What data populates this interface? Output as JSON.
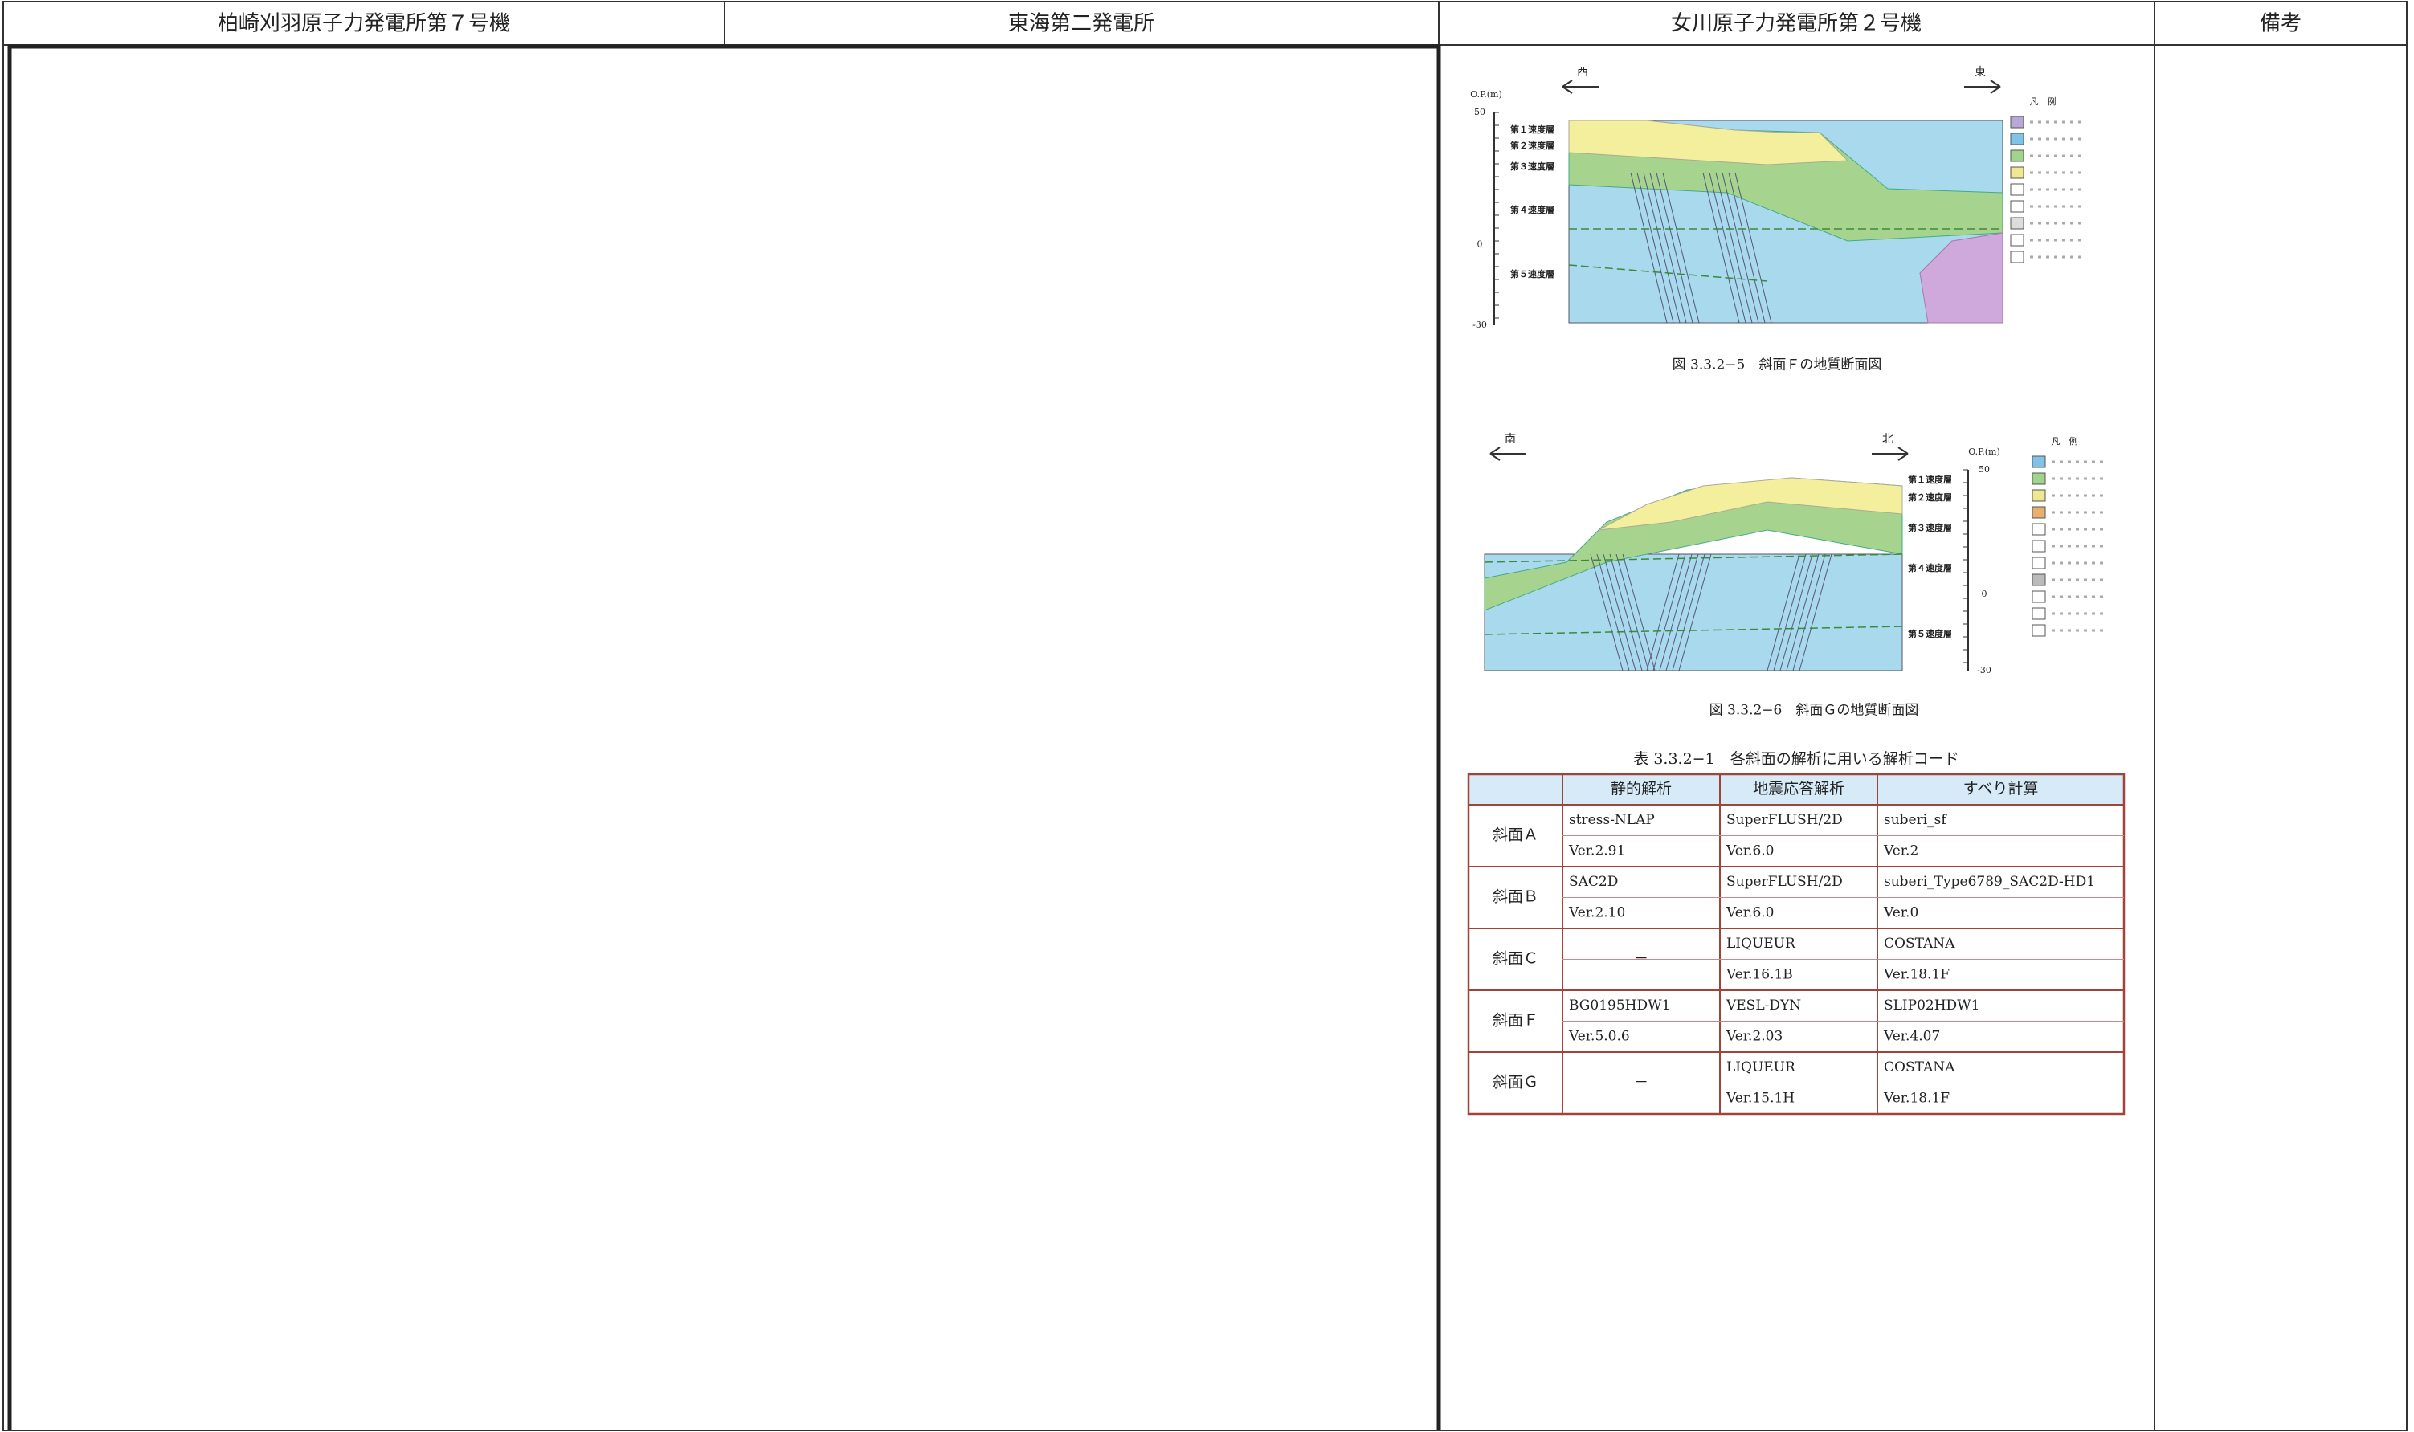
{
  "header": {
    "columns": [
      "柏崎刈羽原子力発電所第７号機",
      "東海第二発電所",
      "女川原子力発電所第２号機",
      "備考"
    ]
  },
  "figures": [
    {
      "caption": "図 3.3.2−5　斜面Ｆの地質断面図",
      "dir_left": "西",
      "dir_right": "東",
      "axis_title": "O.P.(m)",
      "axis_ticks": [
        "50",
        "0",
        "-30"
      ],
      "layers": [
        "第１速度層",
        "第２速度層",
        "第３速度層",
        "第４速度層",
        "第５速度層"
      ],
      "legend_title": "凡　例"
    },
    {
      "caption": "図 3.3.2−6　斜面Ｇの地質断面図",
      "dir_left": "南",
      "dir_right": "北",
      "axis_title": "O.P.(m)",
      "axis_ticks": [
        "50",
        "0",
        "-30"
      ],
      "layers": [
        "第１速度層",
        "第２速度層",
        "第３速度層",
        "第４速度層",
        "第５速度層"
      ],
      "legend_title": "凡　例"
    }
  ],
  "table": {
    "title": "表 3.3.2−1　各斜面の解析に用いる解析コード",
    "header": [
      "静的解析",
      "地震応答解析",
      "すべり計算"
    ],
    "rows": [
      {
        "slope": "斜面Ａ",
        "cells": [
          [
            "stress-NLAP",
            "Ver.2.91"
          ],
          [
            "SuperFLUSH/2D",
            "Ver.6.0"
          ],
          [
            "suberi_sf",
            "Ver.2"
          ]
        ]
      },
      {
        "slope": "斜面Ｂ",
        "cells": [
          [
            "SAC2D",
            "Ver.2.10"
          ],
          [
            "SuperFLUSH/2D",
            "Ver.6.0"
          ],
          [
            "suberi_Type6789_SAC2D-HD1",
            "Ver.0"
          ]
        ]
      },
      {
        "slope": "斜面Ｃ",
        "cells": [
          [
            "－"
          ],
          [
            "LIQUEUR",
            "Ver.16.1B"
          ],
          [
            "COSTANA",
            "Ver.18.1F"
          ]
        ]
      },
      {
        "slope": "斜面Ｆ",
        "cells": [
          [
            "BG0195HDW1",
            "Ver.5.0.6"
          ],
          [
            "VESL-DYN",
            "Ver.2.03"
          ],
          [
            "SLIP02HDW1",
            "Ver.4.07"
          ]
        ]
      },
      {
        "slope": "斜面Ｇ",
        "cells": [
          [
            "－"
          ],
          [
            "LIQUEUR",
            "Ver.15.1H"
          ],
          [
            "COSTANA",
            "Ver.18.1F"
          ]
        ]
      }
    ]
  }
}
